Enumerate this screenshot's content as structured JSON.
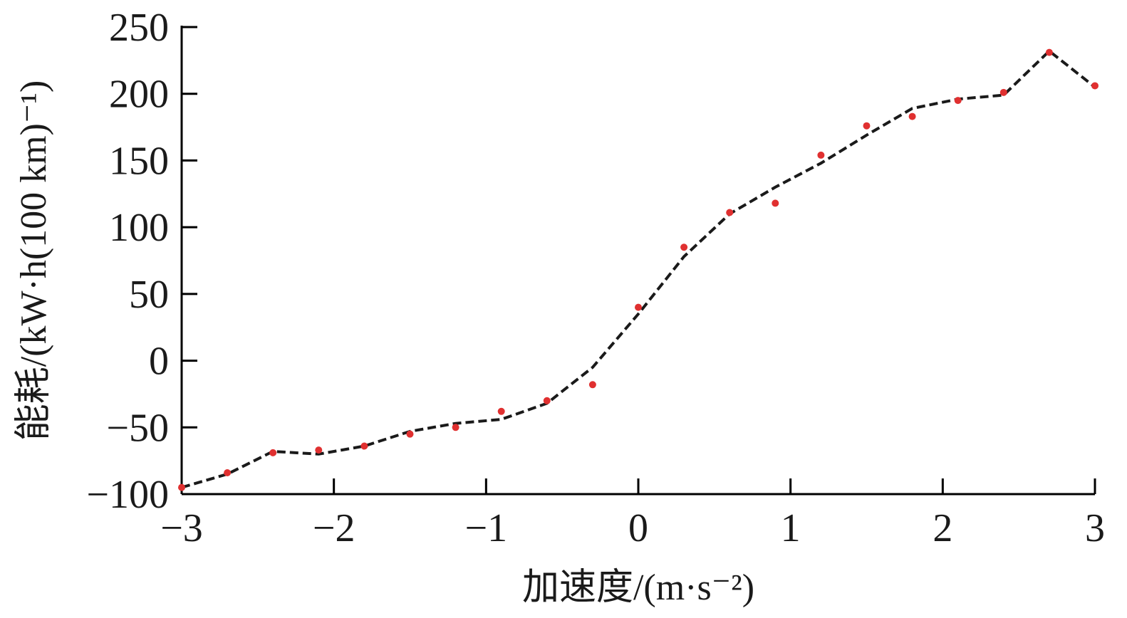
{
  "chart_data": {
    "type": "scatter",
    "xlabel": "加速度/(m·s⁻²)",
    "ylabel": "能耗/(kW·h(100 km)⁻¹)",
    "xlim": [
      -3,
      3
    ],
    "ylim": [
      -100,
      250
    ],
    "xticks": [
      -3,
      -2,
      -1,
      0,
      1,
      2,
      3
    ],
    "yticks": [
      -100,
      -50,
      0,
      50,
      100,
      150,
      200,
      250
    ],
    "xtick_labels": [
      "−3",
      "−2",
      "−1",
      "0",
      "1",
      "2",
      "3"
    ],
    "ytick_labels": [
      "−100",
      "−50",
      "0",
      "50",
      "100",
      "150",
      "200",
      "250"
    ],
    "grid": false,
    "legend": "none",
    "series": [
      {
        "style": "scatter",
        "color": "#e03030",
        "x": [
          -3.0,
          -2.7,
          -2.4,
          -2.1,
          -1.8,
          -1.5,
          -1.2,
          -0.9,
          -0.6,
          -0.3,
          0.0,
          0.3,
          0.6,
          0.9,
          1.2,
          1.5,
          1.8,
          2.1,
          2.4,
          2.7,
          3.0
        ],
        "y": [
          -95,
          -84,
          -69,
          -67,
          -64,
          -55,
          -50,
          -38,
          -30,
          -18,
          40,
          85,
          111,
          118,
          154,
          176,
          183,
          195,
          201,
          231,
          206
        ]
      },
      {
        "style": "dashed-line",
        "color": "#1a1a1a",
        "x": [
          -3.0,
          -2.7,
          -2.4,
          -2.1,
          -1.8,
          -1.5,
          -1.2,
          -0.9,
          -0.6,
          -0.3,
          0.0,
          0.3,
          0.6,
          0.9,
          1.2,
          1.5,
          1.8,
          2.1,
          2.4,
          2.7,
          3.0
        ],
        "y": [
          -95,
          -85,
          -68,
          -70,
          -64,
          -53,
          -47,
          -44,
          -32,
          -5,
          35,
          78,
          110,
          130,
          148,
          169,
          189,
          196,
          199,
          232,
          205
        ]
      }
    ]
  }
}
